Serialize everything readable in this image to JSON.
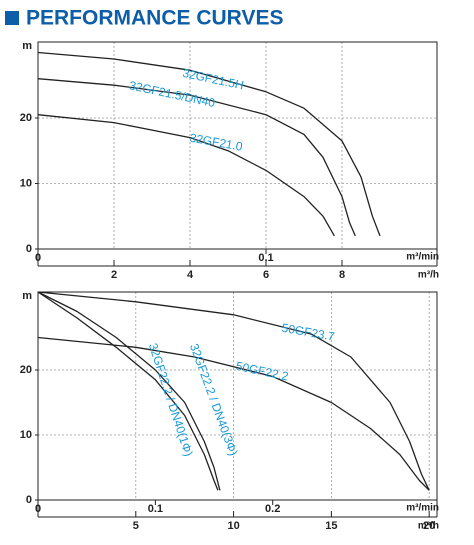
{
  "title": "PERFORMANCE CURVES",
  "chart_data": [
    {
      "type": "line",
      "ylabel": "m",
      "xlabel": "m³/h",
      "x2label": "m³/min",
      "xlim": [
        0,
        10.5
      ],
      "xticks": [
        2,
        4,
        6,
        8
      ],
      "x2lim": [
        0,
        0.175
      ],
      "x2ticks": [
        0,
        0.1
      ],
      "ylim": [
        0,
        31.6
      ],
      "yticks": [
        0,
        10,
        20
      ],
      "grid": true,
      "series": [
        {
          "name": "32GF21.5H",
          "color": "#222222",
          "x": [
            0,
            2,
            4,
            6,
            7,
            8,
            8.5,
            8.8,
            9.0
          ],
          "values": [
            30,
            29,
            27.3,
            24,
            21.5,
            16.5,
            11,
            5,
            2
          ]
        },
        {
          "name": "32GF21.5/DN40",
          "color": "#222222",
          "x": [
            0,
            2,
            4,
            6,
            7,
            7.5,
            8,
            8.2,
            8.35
          ],
          "values": [
            26,
            25,
            23.5,
            20.5,
            17.5,
            14,
            8,
            4,
            2
          ]
        },
        {
          "name": "32GF21.0",
          "color": "#222222",
          "x": [
            0,
            2,
            4,
            5,
            6,
            7,
            7.5,
            7.8
          ],
          "values": [
            20.5,
            19.3,
            17,
            15,
            12,
            8,
            5,
            2
          ]
        }
      ]
    },
    {
      "type": "line",
      "ylabel": "m",
      "xlabel": "m³/h",
      "x2label": "m³/min",
      "xlim": [
        0,
        20.4
      ],
      "xticks": [
        5,
        10,
        15,
        20
      ],
      "x2lim": [
        0,
        0.34
      ],
      "x2ticks": [
        0,
        0.1,
        0.2
      ],
      "ylim": [
        0,
        32
      ],
      "yticks": [
        0,
        10,
        20
      ],
      "grid": true,
      "series": [
        {
          "name": "50GF23.7",
          "color": "#222222",
          "x": [
            0,
            5,
            10,
            14,
            16,
            18,
            19,
            19.6,
            20
          ],
          "values": [
            32,
            30.5,
            28.5,
            25.5,
            22,
            15,
            9,
            4,
            1.5
          ]
        },
        {
          "name": "50GF22.2",
          "color": "#222222",
          "x": [
            0,
            5,
            8,
            12,
            15,
            17,
            18.5,
            19.5,
            20
          ],
          "values": [
            25,
            23.5,
            22,
            19,
            15,
            11,
            7,
            3,
            1.5
          ]
        },
        {
          "name": "32GF22.2 / DN40(3Φ)",
          "color": "#222222",
          "x": [
            0,
            2,
            4,
            6,
            7.5,
            8.5,
            9,
            9.3
          ],
          "values": [
            32,
            29,
            25,
            20,
            15,
            9,
            5,
            1.5
          ]
        },
        {
          "name": "32GF22.2 / DN40(1Φ)",
          "color": "#222222",
          "x": [
            0,
            2,
            4,
            6,
            7.5,
            8.5,
            9,
            9.2
          ],
          "values": [
            32,
            28,
            23.5,
            18.5,
            13,
            7,
            3,
            1.5
          ]
        }
      ]
    }
  ]
}
